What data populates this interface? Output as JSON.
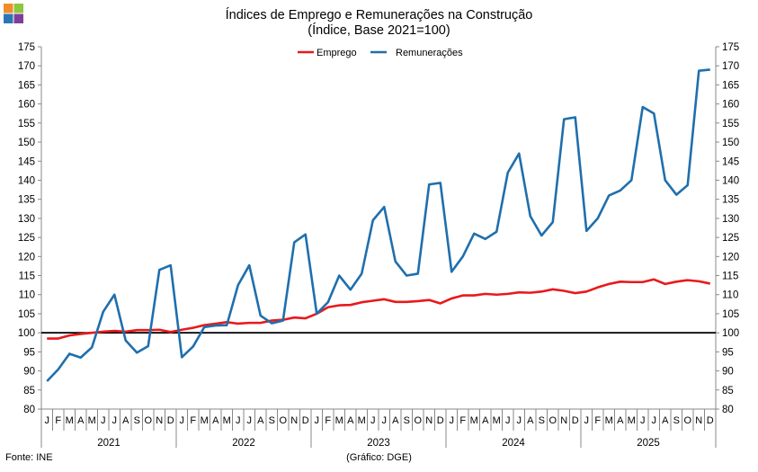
{
  "header": {
    "title": "Índices de Emprego e Remunerações na Construção",
    "subtitle": "(Índice, Base 2021=100)"
  },
  "footer": {
    "source": "Fonte: INE",
    "credit": "(Gráfico: DGE)"
  },
  "logo": {
    "colors": [
      "#f28c28",
      "#8dc63f",
      "#2e75b6",
      "#7f3f98"
    ]
  },
  "chart_data": {
    "type": "line",
    "title": "Índices de Emprego e Remunerações na Construção",
    "subtitle": "(Índice, Base 2021=100)",
    "ylim": [
      80,
      175
    ],
    "yticks": [
      80,
      85,
      90,
      95,
      100,
      105,
      110,
      115,
      120,
      125,
      130,
      135,
      140,
      145,
      150,
      155,
      160,
      165,
      170,
      175
    ],
    "y_axes": "both",
    "reference_line": 100,
    "grid": false,
    "legend": "top-center",
    "month_labels": [
      "J",
      "F",
      "M",
      "A",
      "M",
      "J",
      "J",
      "A",
      "S",
      "O",
      "N",
      "D"
    ],
    "years": [
      "2021",
      "2022",
      "2023",
      "2024",
      "2025"
    ],
    "series": [
      {
        "name": "Emprego",
        "color": "#e8191c",
        "values": [
          98.5,
          98.5,
          99.3,
          99.7,
          100.0,
          100.3,
          100.5,
          100.3,
          100.7,
          100.7,
          100.8,
          100.2,
          100.8,
          101.3,
          102.0,
          102.4,
          102.8,
          102.4,
          102.6,
          102.6,
          103.2,
          103.4,
          104.0,
          103.8,
          105.0,
          106.7,
          107.2,
          107.3,
          108.0,
          108.4,
          108.8,
          108.1,
          108.1,
          108.3,
          108.6,
          107.7,
          109.0,
          109.8,
          109.8,
          110.2,
          110.0,
          110.2,
          110.6,
          110.5,
          110.8,
          111.4,
          111.0,
          110.4,
          110.8,
          111.9,
          112.8,
          113.4,
          113.3,
          113.3,
          114.0,
          112.8,
          113.4,
          113.8,
          113.5,
          112.9
        ]
      },
      {
        "name": "Remunerações",
        "color": "#1f6fad",
        "values": [
          87.3,
          90.4,
          94.5,
          93.5,
          96.2,
          105.5,
          110.0,
          98.0,
          94.8,
          96.5,
          116.5,
          117.7,
          93.6,
          96.4,
          101.5,
          101.9,
          102.0,
          112.5,
          117.7,
          104.5,
          102.5,
          103.2,
          123.7,
          125.8,
          105.0,
          108.0,
          115.0,
          111.3,
          115.5,
          129.5,
          133.0,
          118.7,
          115.0,
          115.5,
          138.9,
          139.3,
          116.0,
          120.0,
          126.0,
          124.6,
          126.5,
          142.0,
          147.0,
          130.6,
          125.5,
          129.0,
          156.0,
          156.5,
          126.7,
          130.0,
          136.0,
          137.3,
          140.0,
          159.2,
          157.5,
          140.0,
          136.2,
          138.7,
          168.7,
          169.0
        ]
      }
    ]
  }
}
